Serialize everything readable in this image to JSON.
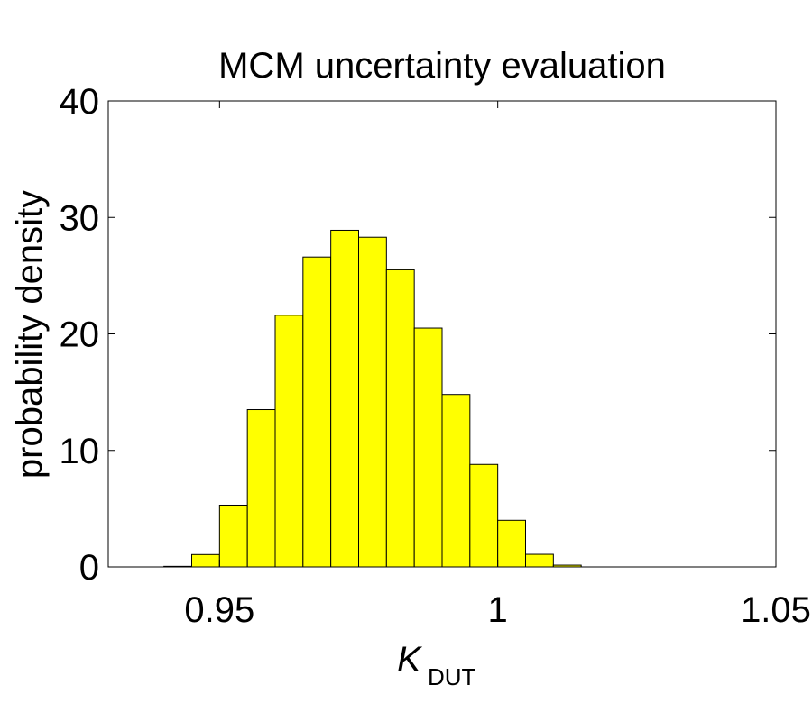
{
  "chart_data": {
    "type": "bar",
    "title": "MCM uncertainty evaluation",
    "xlabel": "K",
    "xlabel_subscript": "DUT",
    "ylabel": "probability density",
    "xlim": [
      0.93,
      1.05
    ],
    "ylim": [
      0,
      40
    ],
    "xticks": [
      0.95,
      1,
      1.05
    ],
    "xtick_labels": [
      "0.95",
      "1",
      "1.05"
    ],
    "yticks": [
      0,
      10,
      20,
      30,
      40
    ],
    "ytick_labels": [
      "0",
      "10",
      "20",
      "30",
      "40"
    ],
    "grid": false,
    "bin_width": 0.005,
    "bin_edges_start": [
      0.94,
      0.945,
      0.95,
      0.955,
      0.96,
      0.965,
      0.97,
      0.975,
      0.98,
      0.985,
      0.99,
      0.995,
      1.0,
      1.005,
      1.01
    ],
    "values": [
      0.05,
      1.06,
      5.3,
      13.5,
      21.6,
      26.6,
      28.9,
      28.3,
      25.5,
      20.5,
      14.8,
      8.8,
      4.0,
      1.08,
      0.15
    ],
    "bar_color": "#ffff00",
    "edge_color": "#000000"
  }
}
